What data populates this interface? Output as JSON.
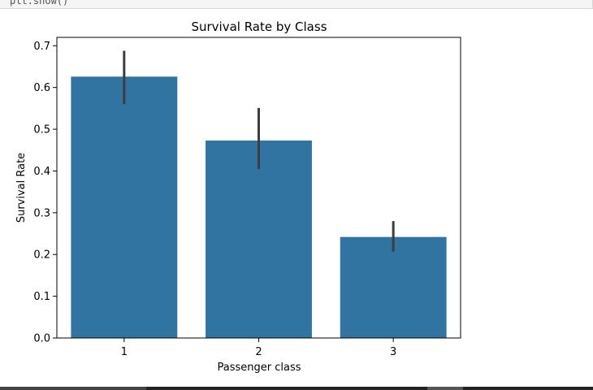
{
  "notebook": {
    "cell_code_fragment": "plt.show()"
  },
  "chart_data": {
    "type": "bar",
    "title": "Survival Rate by Class",
    "xlabel": "Passenger class",
    "ylabel": "Survival Rate",
    "categories": [
      "1",
      "2",
      "3"
    ],
    "values": [
      0.626,
      0.473,
      0.242
    ],
    "error_low": [
      0.56,
      0.405,
      0.207
    ],
    "error_high": [
      0.688,
      0.551,
      0.28
    ],
    "ylim": [
      0,
      0.72
    ],
    "yticks": [
      "0.0",
      "0.1",
      "0.2",
      "0.3",
      "0.4",
      "0.5",
      "0.6",
      "0.7"
    ],
    "bar_color": "#3274a1",
    "error_color": "#3d3d3d",
    "grid": false
  }
}
